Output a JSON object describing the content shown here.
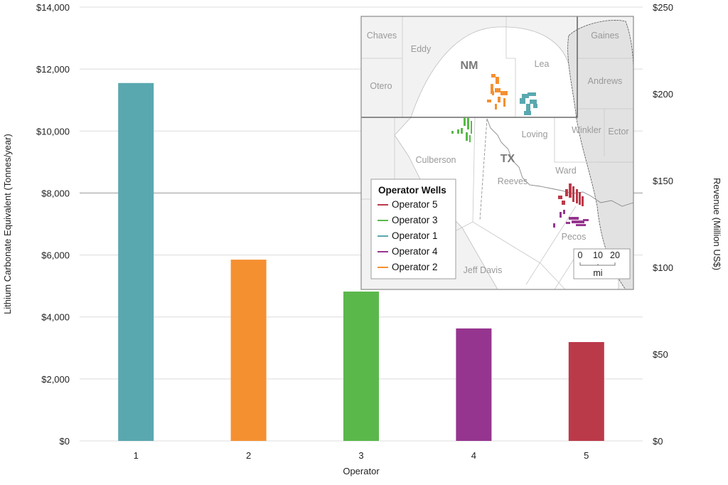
{
  "chart_data": {
    "type": "bar",
    "title": "",
    "xlabel": "Operator",
    "ylabel": "Lithium Carbonate Equivalent (Tonnes/year)",
    "y2label": "Revenue (Million US$)",
    "categories": [
      "1",
      "2",
      "3",
      "4",
      "5"
    ],
    "values": [
      11550,
      5850,
      4820,
      3630,
      3190
    ],
    "colors": [
      "#5AA8AF",
      "#F59031",
      "#5AB84B",
      "#96358F",
      "#BB3A4A"
    ],
    "ylim": [
      0,
      14000
    ],
    "y2lim": [
      0,
      250
    ],
    "yticks": [
      "$0",
      "$2,000",
      "$4,000",
      "$6,000",
      "$8,000",
      "$10,000",
      "$12,000",
      "$14,000"
    ],
    "ytick_values": [
      0,
      2000,
      4000,
      6000,
      8000,
      10000,
      12000,
      14000
    ],
    "y2ticks": [
      "$0",
      "$50",
      "$100",
      "$150",
      "$200",
      "$250"
    ],
    "y2tick_values": [
      0,
      50,
      100,
      150,
      200,
      250
    ],
    "grid": true,
    "legend": "none"
  },
  "inset_map": {
    "state_labels": [
      "NM",
      "TX"
    ],
    "county_labels": [
      "Chaves",
      "Eddy",
      "Lea",
      "Gaines",
      "Otero",
      "Andrews",
      "Loving",
      "Winkler",
      "Ector",
      "Culberson",
      "Reeves",
      "Ward",
      "Pecos",
      "Jeff Davis"
    ],
    "legend": {
      "title": "Operator Wells",
      "items": [
        {
          "label": "Operator 5",
          "color": "#BB3A4A"
        },
        {
          "label": "Operator 3",
          "color": "#5AB84B"
        },
        {
          "label": "Operator 1",
          "color": "#5AA8AF"
        },
        {
          "label": "Operator 4",
          "color": "#96358F"
        },
        {
          "label": "Operator 2",
          "color": "#F59031"
        }
      ],
      "position": "bottom-left"
    },
    "scale_bar": {
      "ticks": [
        "0",
        "10",
        "20"
      ],
      "unit": "mi"
    }
  }
}
